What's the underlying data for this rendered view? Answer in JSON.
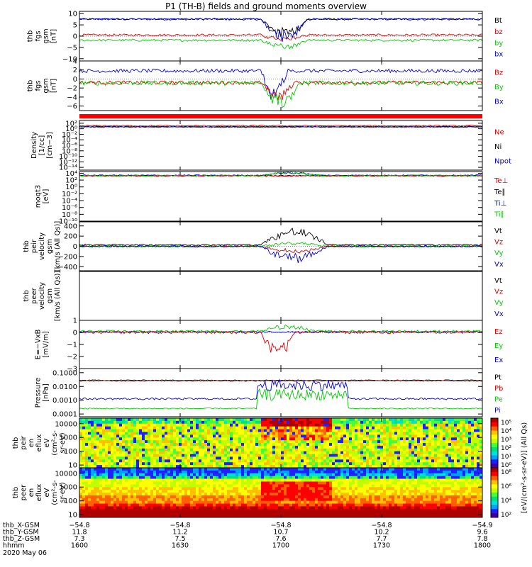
{
  "title": "P1 (TH-B) fields and ground moments overview",
  "colors": {
    "black": "#000000",
    "red": "#dd0000",
    "green": "#00cc00",
    "blue": "#0000dd"
  },
  "chart_data": {
    "type": "line",
    "x_ticks": [
      "1600",
      "1630",
      "1700",
      "1730",
      "1800"
    ],
    "x_domain_minutes": [
      0,
      120
    ],
    "panels": [
      {
        "id": "fgs",
        "ylabel": [
          "thb",
          "fgs",
          "gsm",
          "[nT]"
        ],
        "ytick_labels": [
          "10",
          "5",
          "0",
          "−5",
          "−10"
        ],
        "yvals": [
          10,
          5,
          0,
          -5,
          -10
        ],
        "ylim": [
          -11,
          11
        ],
        "legend": [
          {
            "text": "Bt",
            "color": "black"
          },
          {
            "text": "bz",
            "color": "red"
          },
          {
            "text": "by",
            "color": "green"
          },
          {
            "text": "bx",
            "color": "blue"
          }
        ],
        "series": [
          {
            "color": "black",
            "base": 7.5,
            "noise": 0.4,
            "event": [
              [
                54,
                68,
                -6,
                "dip"
              ]
            ]
          },
          {
            "color": "red",
            "base": 0.5,
            "noise": 0.5,
            "event": [
              [
                54,
                68,
                -2,
                "dip"
              ]
            ]
          },
          {
            "color": "green",
            "base": -1.8,
            "noise": 0.5,
            "event": [
              [
                54,
                68,
                -3,
                "dip"
              ]
            ]
          },
          {
            "color": "blue",
            "base": 7.6,
            "noise": 0.3,
            "event": [
              [
                54,
                68,
                -8,
                "dip"
              ]
            ]
          }
        ]
      },
      {
        "id": "fgsB",
        "ylabel": [
          "thb",
          "fgs",
          "gsm",
          "[nT]"
        ],
        "ytick_labels": [
          "4",
          "2",
          "0",
          "−2",
          "−4",
          "−6"
        ],
        "yvals": [
          4,
          2,
          0,
          -2,
          -4,
          -6
        ],
        "ylim": [
          -7,
          4
        ],
        "legend": [
          {
            "text": "Bz",
            "color": "red"
          },
          {
            "text": "By",
            "color": "green"
          },
          {
            "text": "Bx",
            "color": "blue"
          }
        ],
        "series": [
          {
            "color": "blue",
            "base": 1.8,
            "noise": 0.4,
            "event": [
              [
                54,
                62,
                -5,
                "dip"
              ]
            ]
          },
          {
            "color": "red",
            "base": -0.8,
            "noise": 0.4,
            "event": [
              [
                54,
                64,
                -3,
                "dip"
              ]
            ]
          },
          {
            "color": "green",
            "base": -0.9,
            "noise": 0.5,
            "event": [
              [
                54,
                66,
                -4,
                "dip"
              ]
            ]
          }
        ]
      },
      {
        "id": "dens",
        "ylabel": [
          "Density",
          "[1/cc]",
          "[cm−3]"
        ],
        "ytick_labels": [
          "10²",
          "10⁰",
          "10⁻²",
          "10⁻⁴",
          "10⁻⁶",
          "10⁻⁸",
          "10⁻¹⁰",
          "10⁻¹²",
          "10⁻¹⁴"
        ],
        "yvals": [
          2,
          0,
          -2,
          -4,
          -6,
          -8,
          -10,
          -12,
          -14
        ],
        "ylim": [
          -15,
          3
        ],
        "legend": [
          {
            "text": "Ne",
            "color": "red"
          },
          {
            "text": "Ni",
            "color": "black"
          },
          {
            "text": "Npot",
            "color": "blue"
          }
        ],
        "series": [
          {
            "color": "black",
            "base": 0.8,
            "noise": 0.15
          },
          {
            "color": "red",
            "base": 1.1,
            "noise": 0.2
          },
          {
            "color": "blue",
            "base": 0.6,
            "noise": 0.15
          }
        ]
      },
      {
        "id": "temp",
        "ylabel": [
          "moqt3",
          "[eV]"
        ],
        "ytick_labels": [
          "10⁴",
          "10²",
          "10⁰",
          "10⁻²",
          "10⁻⁴",
          "10⁻⁶",
          "10⁻⁸",
          "10⁻¹⁰"
        ],
        "yvals": [
          4,
          2,
          0,
          -2,
          -4,
          -6,
          -8,
          -10
        ],
        "ylim": [
          -10,
          4.5
        ],
        "legend": [
          {
            "text": "Te⊥",
            "color": "red"
          },
          {
            "text": "Te∥",
            "color": "black"
          },
          {
            "text": "Ti⊥",
            "color": "blue"
          },
          {
            "text": "Ti∥",
            "color": "green"
          }
        ],
        "series": [
          {
            "color": "black",
            "base": 3.3,
            "noise": 0.15
          },
          {
            "color": "red",
            "base": 3.2,
            "noise": 0.15
          },
          {
            "color": "blue",
            "base": 3.4,
            "noise": 0.15,
            "event": [
              [
                54,
                72,
                0.7,
                "bump"
              ]
            ]
          },
          {
            "color": "green",
            "base": 3.3,
            "noise": 0.2,
            "event": [
              [
                54,
                72,
                0.8,
                "bump"
              ]
            ]
          }
        ]
      },
      {
        "id": "vel",
        "ylabel": [
          "thb",
          "peir",
          "velocity",
          "gsm",
          "[km/s (All Qs)]"
        ],
        "ytick_labels": [
          "400",
          "200",
          "0",
          "−200",
          "−400"
        ],
        "yvals": [
          400,
          200,
          0,
          -200,
          -400
        ],
        "ylim": [
          -480,
          480
        ],
        "legend": [
          {
            "text": "Vt",
            "color": "black"
          },
          {
            "text": "Vz",
            "color": "red"
          },
          {
            "text": "Vy",
            "color": "green"
          },
          {
            "text": "Vx",
            "color": "blue"
          }
        ],
        "series": [
          {
            "color": "black",
            "base": 30,
            "noise": 15,
            "event": [
              [
                54,
                74,
                250,
                "bump"
              ]
            ]
          },
          {
            "color": "red",
            "base": 0,
            "noise": 15,
            "event": [
              [
                54,
                74,
                -90,
                "dip"
              ]
            ]
          },
          {
            "color": "green",
            "base": 0,
            "noise": 20,
            "event": [
              [
                54,
                74,
                60,
                "bump"
              ]
            ]
          },
          {
            "color": "blue",
            "base": 0,
            "noise": 15,
            "event": [
              [
                54,
                74,
                -240,
                "dip"
              ]
            ]
          }
        ]
      },
      {
        "id": "velE",
        "ylabel": [
          "thb",
          "peer",
          "velocity",
          "gsm",
          "[km/s (All Qs)]"
        ],
        "ytick_labels": [],
        "yvals": [],
        "ylim": [
          0,
          1
        ],
        "legend": [
          {
            "text": "Vt",
            "color": "black"
          },
          {
            "text": "Vz",
            "color": "red"
          },
          {
            "text": "Vy",
            "color": "green"
          },
          {
            "text": "Vx",
            "color": "blue"
          }
        ],
        "series": []
      },
      {
        "id": "efld",
        "ylabel": [
          "E=−VxB",
          "[mV/m]"
        ],
        "ytick_labels": [
          "1",
          "0",
          "−1",
          "−2",
          "−3"
        ],
        "yvals": [
          1,
          0,
          -1,
          -2,
          -3
        ],
        "ylim": [
          -3,
          1
        ],
        "legend": [
          {
            "text": "Ez",
            "color": "red"
          },
          {
            "text": "Ey",
            "color": "green"
          },
          {
            "text": "Ex",
            "color": "blue"
          }
        ],
        "series": [
          {
            "color": "blue",
            "base": 0.05,
            "noise": 0.06
          },
          {
            "color": "green",
            "base": 0.1,
            "noise": 0.08,
            "event": [
              [
                54,
                70,
                0.4,
                "bump"
              ]
            ]
          },
          {
            "color": "red",
            "base": 0.0,
            "noise": 0.1,
            "event": [
              [
                54,
                64,
                -1.7,
                "dip"
              ]
            ]
          }
        ]
      },
      {
        "id": "pres",
        "ylabel": [
          "Pressure",
          "[nPa]"
        ],
        "ytick_labels": [
          "0.1000",
          "0.0100",
          "0.0010",
          "0.0001"
        ],
        "yvals": [
          -1,
          -2,
          -3,
          -4
        ],
        "ylim": [
          -4.2,
          -0.7
        ],
        "legend": [
          {
            "text": "Pt",
            "color": "black"
          },
          {
            "text": "Pb",
            "color": "red"
          },
          {
            "text": "Pe",
            "color": "green"
          },
          {
            "text": "Pi",
            "color": "blue"
          }
        ],
        "series": [
          {
            "color": "black",
            "base": -1.55,
            "noise": 0.03
          },
          {
            "color": "red",
            "base": -1.6,
            "noise": 0.03
          },
          {
            "color": "blue",
            "base": -2.9,
            "noise": 0.07,
            "event": [
              [
                53,
                80,
                1.0,
                "plateau"
              ]
            ]
          },
          {
            "color": "green",
            "base": -3.6,
            "noise": 0.04,
            "event": [
              [
                53,
                80,
                1.0,
                "plateau"
              ]
            ]
          }
        ]
      },
      {
        "id": "spi",
        "type": "heatmap",
        "ylabel": [
          "thb",
          "peir",
          "en",
          "eflux",
          "eV",
          "(cm²-s-",
          "sr-eV)"
        ],
        "ytick_labels": [
          "10000",
          "1000",
          "100",
          "10"
        ],
        "yvals": [
          4,
          3,
          2,
          1
        ],
        "ylim": [
          0.8,
          4.4
        ]
      },
      {
        "id": "spe",
        "type": "heatmap",
        "ylabel": [
          "thb",
          "peer",
          "en",
          "eflux",
          "eV",
          "(cm²-s-",
          "sr-eV)"
        ],
        "ytick_labels": [
          "10000",
          "1000",
          "100",
          "10"
        ],
        "yvals": [
          4,
          3,
          2,
          1
        ],
        "ylim": [
          0.8,
          4.4
        ]
      }
    ],
    "colorbar": {
      "label": "[eV/(cm²-s-sr-eV)] (All Qs)",
      "ticks1": [
        "10⁵",
        "10⁴",
        "10³",
        "10²",
        "10¹",
        "10⁰"
      ],
      "ticks2": [
        "10⁸",
        "10⁶",
        "10⁴",
        "10²"
      ]
    },
    "ephemeris": {
      "rows": [
        {
          "label": "thb_X-GSM",
          "values": [
            "−54.8",
            "−54.8",
            "−54.8",
            "−54.8",
            "−54.9"
          ]
        },
        {
          "label": "thb_Y-GSM",
          "values": [
            "11.8",
            "11.2",
            "10.7",
            "10.2",
            "9.6"
          ]
        },
        {
          "label": "thb_Z-GSM",
          "values": [
            "7.3",
            "7.5",
            "7.6",
            "7.7",
            "7.8"
          ]
        },
        {
          "label": "hhmm",
          "values": [
            "1600",
            "1630",
            "1700",
            "1730",
            "1800"
          ]
        }
      ],
      "date": "2020 May 06"
    }
  }
}
